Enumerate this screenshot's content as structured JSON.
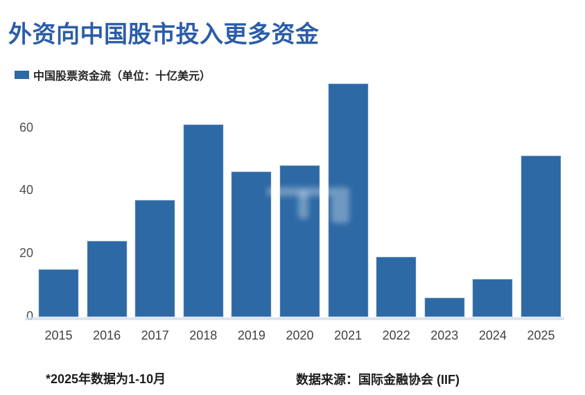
{
  "title": "外资向中国股市投入更多资金",
  "legend": {
    "label": "中国股票资金流（单位：十亿美元）",
    "swatch_icon": "square-swatch-icon"
  },
  "footnotes": {
    "left": "*2025年数据为1-10月",
    "right": "数据来源：国际金融协会 (IIF)"
  },
  "colors": {
    "bar": "#2d69a5",
    "title": "#2b5da9",
    "baseline": "#d3dfee"
  },
  "chart_data": {
    "type": "bar",
    "title": "外资向中国股市投入更多资金",
    "legend_entries": [
      "中国股票资金流（单位：十亿美元）"
    ],
    "unit": "十亿美元",
    "categories": [
      "2015",
      "2016",
      "2017",
      "2018",
      "2019",
      "2020",
      "2021",
      "2022",
      "2023",
      "2024",
      "2025"
    ],
    "values": [
      15,
      24,
      37,
      61,
      46,
      48,
      74,
      19,
      6,
      12,
      51
    ],
    "xlabel": "",
    "ylabel": "",
    "yticks": [
      0,
      20,
      40,
      60
    ],
    "ylim": [
      0,
      75
    ],
    "grid": false,
    "legend_position": "top-left",
    "annotations": [
      "*2025年数据为1-10月",
      "数据来源：国际金融协会 (IIF)"
    ]
  }
}
